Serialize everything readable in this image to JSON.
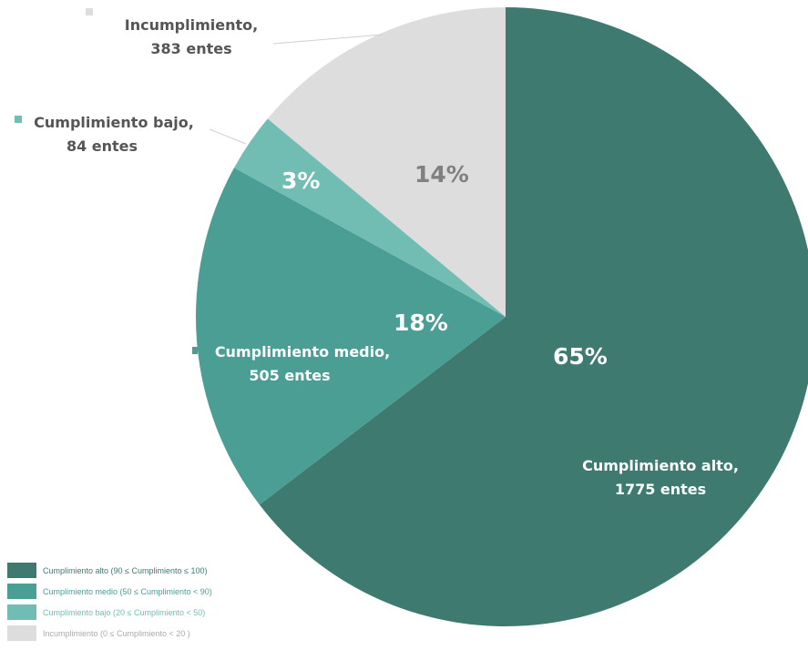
{
  "chart_data": {
    "type": "pie",
    "slices": [
      {
        "key": "alto",
        "percent": 65,
        "percent_label": "65%",
        "label_line1": "Cumplimiento alto,",
        "label_line2": "1775 entes",
        "count": 1775,
        "color": "#3f7a70",
        "pct_color": "#ffffff",
        "label_color": "#ffffff"
      },
      {
        "key": "medio",
        "percent": 18,
        "percent_label": "18%",
        "label_line1": "Cumplimiento medio,",
        "label_line2": "505 entes",
        "count": 505,
        "color": "#4a9e94",
        "pct_color": "#ffffff",
        "label_color": "#ffffff"
      },
      {
        "key": "bajo",
        "percent": 3,
        "percent_label": "3%",
        "label_line1": "Cumplimiento bajo,",
        "label_line2": "84 entes",
        "count": 84,
        "color": "#72bdb3",
        "pct_color": "#ffffff",
        "label_color": "#555555"
      },
      {
        "key": "incumplimiento",
        "percent": 14,
        "percent_label": "14%",
        "label_line1": "Incumplimiento,",
        "label_line2": "383 entes",
        "count": 383,
        "color": "#dddddd",
        "pct_color": "#808080",
        "label_color": "#555555"
      }
    ],
    "legend": [
      {
        "text": "Cumplimiento alto (90 ≤ Cumplimiento ≤ 100)",
        "color": "#3f7a70",
        "text_color": "#3f7a70"
      },
      {
        "text": "Cumplimiento medio (50 ≤ Cumplimiento < 90)",
        "color": "#4a9e94",
        "text_color": "#4a9e94"
      },
      {
        "text": "Cumplimiento bajo (20 ≤ Cumplimiento < 50)",
        "color": "#72bdb3",
        "text_color": "#72bdb3"
      },
      {
        "text": "Incumplimiento (0 ≤ Cumplimiento < 20 )",
        "color": "#dddddd",
        "text_color": "#aaaaaa"
      }
    ],
    "legend_position": "bottom-left"
  }
}
